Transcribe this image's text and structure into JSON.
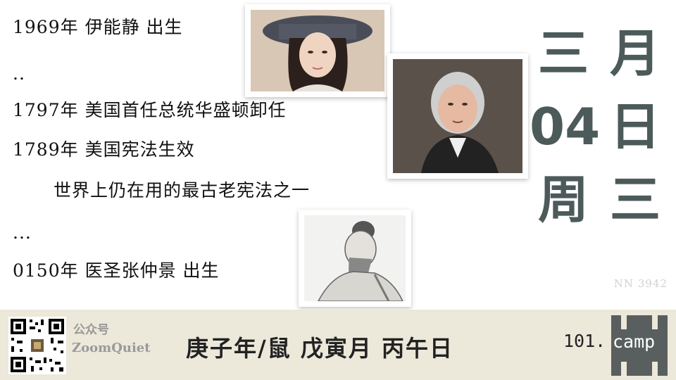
{
  "events": [
    "1969年 伊能静 出生",
    "..",
    "1797年 美国首任总统华盛顿卸任",
    "1789年 美国宪法生效",
    "世界上仍在用的最古老宪法之一",
    "...",
    "0150年 医圣张仲景 出生"
  ],
  "date": {
    "col1": [
      "三",
      "04",
      "周"
    ],
    "col2": [
      "月",
      "日",
      "三"
    ]
  },
  "watermark": "NN 3942",
  "footer": {
    "account_label": "公众号",
    "account_name": "ZoomQuiet",
    "ganzhi": "庚子年/鼠 戊寅月 丙午日",
    "brand_number": "101.",
    "brand_word": "camp"
  },
  "colors": {
    "date_text": "#4c5a5a",
    "footer_bg": "#ece8da",
    "logo_bg": "#595f5f"
  }
}
